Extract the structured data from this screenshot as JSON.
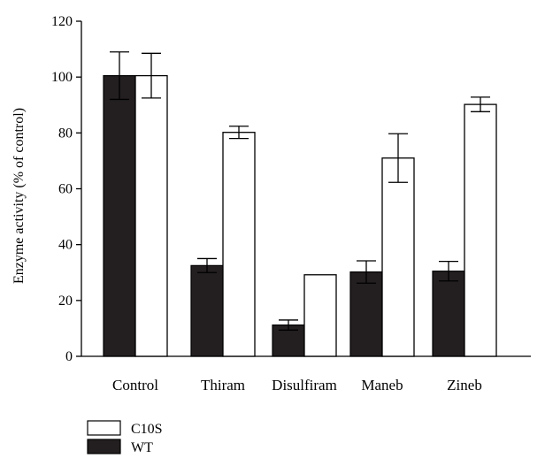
{
  "chart_data": {
    "type": "bar",
    "title": "",
    "xlabel": "",
    "ylabel": "Enzyme activity (% of control)",
    "ylim": [
      0,
      120
    ],
    "yticks": [
      0,
      20,
      40,
      60,
      80,
      100,
      120
    ],
    "grid": false,
    "legend_position": "bottom-left",
    "categories": [
      "Control",
      "Thiram",
      "Disulfiram",
      "Maneb",
      "Zineb"
    ],
    "series": [
      {
        "name": "WT",
        "color": "#231f20",
        "values": [
          100.5,
          32.5,
          11.2,
          30.2,
          30.5
        ],
        "error": [
          8.5,
          2.5,
          1.8,
          4.0,
          3.5
        ]
      },
      {
        "name": "C10S",
        "color": "#ffffff",
        "values": [
          100.5,
          80.2,
          29.2,
          71.0,
          90.2
        ],
        "error": [
          8.0,
          2.2,
          0,
          8.7,
          2.6
        ]
      }
    ],
    "legend_order": [
      "C10S",
      "WT"
    ]
  }
}
